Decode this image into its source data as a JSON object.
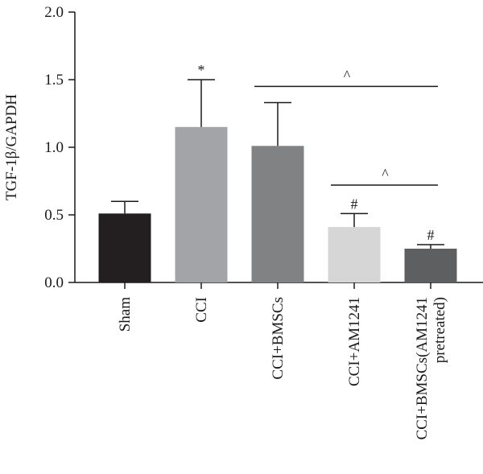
{
  "chart_data": {
    "type": "bar",
    "categories": [
      "Sham",
      "CCI",
      "CCI+BMSCs",
      "CCI+AM1241",
      "CCI+BMSCs(AM1241 pretreated)"
    ],
    "category_label_lines": [
      [
        "Sham"
      ],
      [
        "CCI"
      ],
      [
        "CCI+BMSCs"
      ],
      [
        "CCI+AM1241"
      ],
      [
        "CCI+BMSCs(AM1241",
        "pretreated)"
      ]
    ],
    "values": [
      0.51,
      1.15,
      1.01,
      0.41,
      0.25
    ],
    "errors": [
      0.09,
      0.35,
      0.32,
      0.1,
      0.03
    ],
    "bar_colors": [
      "#231f20",
      "#a2a4a7",
      "#808283",
      "#d6d6d6",
      "#5e5f61"
    ],
    "markers": [
      "",
      "*",
      "",
      "#",
      "#"
    ],
    "significance": [
      {
        "from": 2,
        "to": 4,
        "y": 1.45,
        "symbol": "^"
      },
      {
        "from": 3,
        "to": 4,
        "y": 0.72,
        "symbol": "^"
      }
    ],
    "ylabel": "TGF-1β/GAPDH",
    "ylim": [
      0,
      2.0
    ],
    "yticks": [
      0.0,
      0.5,
      1.0,
      1.5,
      2.0
    ],
    "ytick_labels": [
      "0.0",
      "0.5",
      "1.0",
      "1.5",
      "2.0"
    ],
    "grid": false,
    "axis_color": "#1a1a1a"
  }
}
